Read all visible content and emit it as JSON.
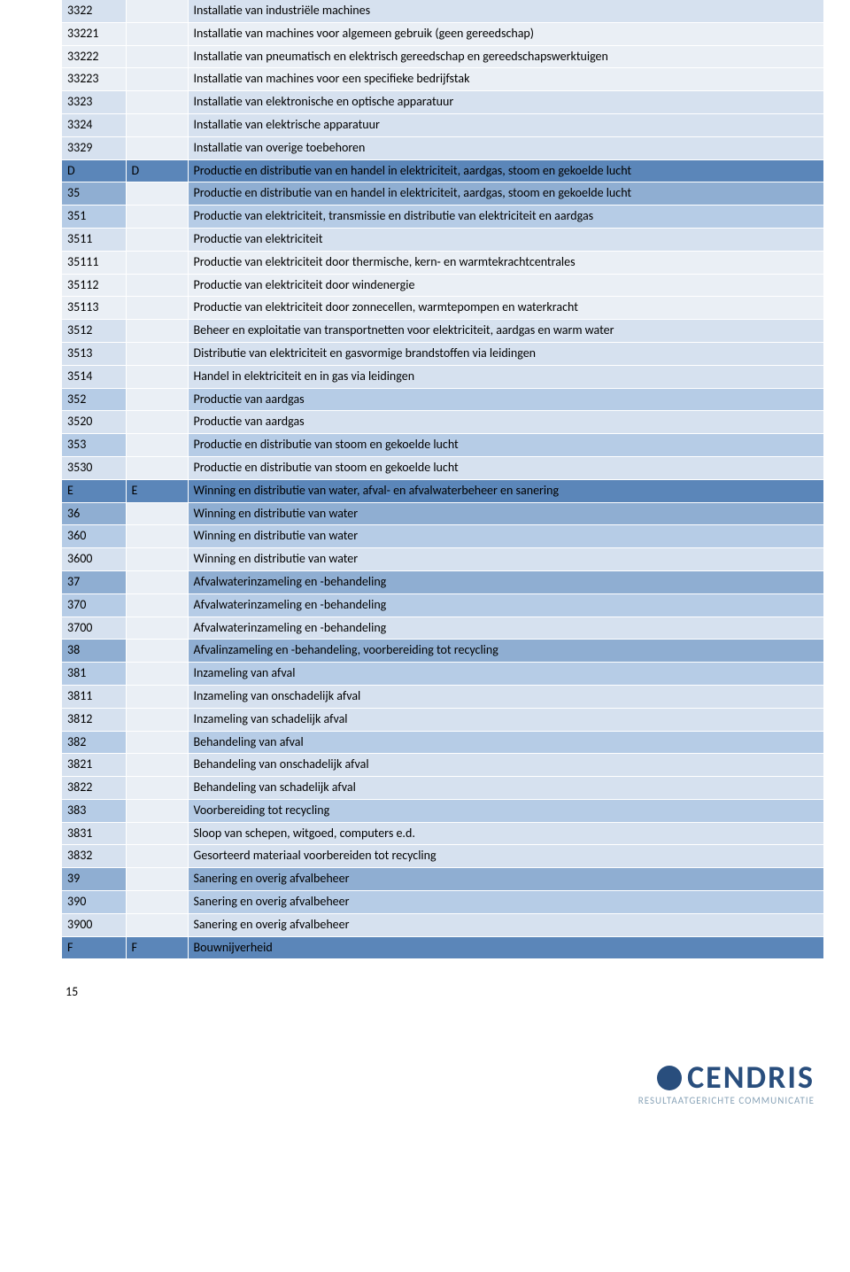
{
  "page_number": "15",
  "logo": {
    "name": "CENDRIS",
    "tagline": "RESULTAATGERICHTE COMMUNICATIE"
  },
  "colors": {
    "lightest": "#eaeff5",
    "light": "#d6e1ef",
    "mid": "#b6cce6",
    "dark": "#8faed2",
    "section": "#5b86b9"
  },
  "rows": [
    {
      "code": "3322",
      "col2": "",
      "desc": "Installatie van industriële machines",
      "level": 3
    },
    {
      "code": "33221",
      "col2": "",
      "desc": "Installatie van machines voor algemeen gebruik (geen gereedschap)",
      "level": 4
    },
    {
      "code": "33222",
      "col2": "",
      "desc": "Installatie van pneumatisch en elektrisch gereedschap en gereedschapswerktuigen",
      "level": 4
    },
    {
      "code": "33223",
      "col2": "",
      "desc": "Installatie van machines voor een specifieke bedrijfstak",
      "level": 4
    },
    {
      "code": "3323",
      "col2": "",
      "desc": "Installatie van elektronische en optische apparatuur",
      "level": 3
    },
    {
      "code": "3324",
      "col2": "",
      "desc": "Installatie van elektrische apparatuur",
      "level": 3
    },
    {
      "code": "3329",
      "col2": "",
      "desc": "Installatie van overige toebehoren",
      "level": 3
    },
    {
      "code": "D",
      "col2": "D",
      "desc": "Productie en distributie van en handel in elektriciteit, aardgas, stoom en gekoelde lucht",
      "level": 0
    },
    {
      "code": "35",
      "col2": "",
      "desc": "Productie en distributie van en handel in elektriciteit, aardgas, stoom en gekoelde lucht",
      "level": 1
    },
    {
      "code": "351",
      "col2": "",
      "desc": "Productie van elektriciteit, transmissie en distributie van elektriciteit en aardgas",
      "level": 2
    },
    {
      "code": "3511",
      "col2": "",
      "desc": "Productie van elektriciteit",
      "level": 3
    },
    {
      "code": "35111",
      "col2": "",
      "desc": "Productie van elektriciteit door thermische, kern- en warmtekrachtcentrales",
      "level": 4
    },
    {
      "code": "35112",
      "col2": "",
      "desc": "Productie van elektriciteit door windenergie",
      "level": 4
    },
    {
      "code": "35113",
      "col2": "",
      "desc": "Productie van elektriciteit door zonnecellen, warmtepompen en waterkracht",
      "level": 4
    },
    {
      "code": "3512",
      "col2": "",
      "desc": "Beheer en exploitatie van transportnetten voor elektriciteit, aardgas en warm water",
      "level": 3
    },
    {
      "code": "3513",
      "col2": "",
      "desc": "Distributie van elektriciteit en gasvormige brandstoffen via leidingen",
      "level": 3
    },
    {
      "code": "3514",
      "col2": "",
      "desc": "Handel in elektriciteit en in gas via leidingen",
      "level": 3
    },
    {
      "code": "352",
      "col2": "",
      "desc": "Productie van aardgas",
      "level": 2
    },
    {
      "code": "3520",
      "col2": "",
      "desc": "Productie van aardgas",
      "level": 3
    },
    {
      "code": "353",
      "col2": "",
      "desc": "Productie en distributie van stoom en gekoelde lucht",
      "level": 2
    },
    {
      "code": "3530",
      "col2": "",
      "desc": "Productie en distributie van stoom en gekoelde lucht",
      "level": 3
    },
    {
      "code": "E",
      "col2": "E",
      "desc": "Winning en distributie van water, afval- en afvalwaterbeheer en sanering",
      "level": 0
    },
    {
      "code": "36",
      "col2": "",
      "desc": "Winning en distributie van water",
      "level": 1
    },
    {
      "code": "360",
      "col2": "",
      "desc": "Winning en distributie van water",
      "level": 2
    },
    {
      "code": "3600",
      "col2": "",
      "desc": "Winning en distributie van water",
      "level": 3
    },
    {
      "code": "37",
      "col2": "",
      "desc": "Afvalwaterinzameling en -behandeling",
      "level": 1
    },
    {
      "code": "370",
      "col2": "",
      "desc": "Afvalwaterinzameling en -behandeling",
      "level": 2
    },
    {
      "code": "3700",
      "col2": "",
      "desc": "Afvalwaterinzameling en -behandeling",
      "level": 3
    },
    {
      "code": "38",
      "col2": "",
      "desc": "Afvalinzameling en -behandeling, voorbereiding tot recycling",
      "level": 1
    },
    {
      "code": "381",
      "col2": "",
      "desc": "Inzameling van afval",
      "level": 2
    },
    {
      "code": "3811",
      "col2": "",
      "desc": "Inzameling van onschadelijk afval",
      "level": 3
    },
    {
      "code": "3812",
      "col2": "",
      "desc": "Inzameling van schadelijk afval",
      "level": 3
    },
    {
      "code": "382",
      "col2": "",
      "desc": "Behandeling van afval",
      "level": 2
    },
    {
      "code": "3821",
      "col2": "",
      "desc": "Behandeling van onschadelijk afval",
      "level": 3
    },
    {
      "code": "3822",
      "col2": "",
      "desc": "Behandeling van schadelijk afval",
      "level": 3
    },
    {
      "code": "383",
      "col2": "",
      "desc": "Voorbereiding tot recycling",
      "level": 2
    },
    {
      "code": "3831",
      "col2": "",
      "desc": "Sloop van schepen, witgoed, computers e.d.",
      "level": 3
    },
    {
      "code": "3832",
      "col2": "",
      "desc": "Gesorteerd materiaal voorbereiden tot recycling",
      "level": 3
    },
    {
      "code": "39",
      "col2": "",
      "desc": "Sanering en overig afvalbeheer",
      "level": 1
    },
    {
      "code": "390",
      "col2": "",
      "desc": "Sanering en overig afvalbeheer",
      "level": 2
    },
    {
      "code": "3900",
      "col2": "",
      "desc": "Sanering en overig afvalbeheer",
      "level": 3
    },
    {
      "code": "F",
      "col2": "F",
      "desc": "Bouwnijverheid",
      "level": 0
    }
  ],
  "level_color_map": {
    "0": "section",
    "1": "dark",
    "2": "mid",
    "3": "light",
    "4": "lightest"
  }
}
